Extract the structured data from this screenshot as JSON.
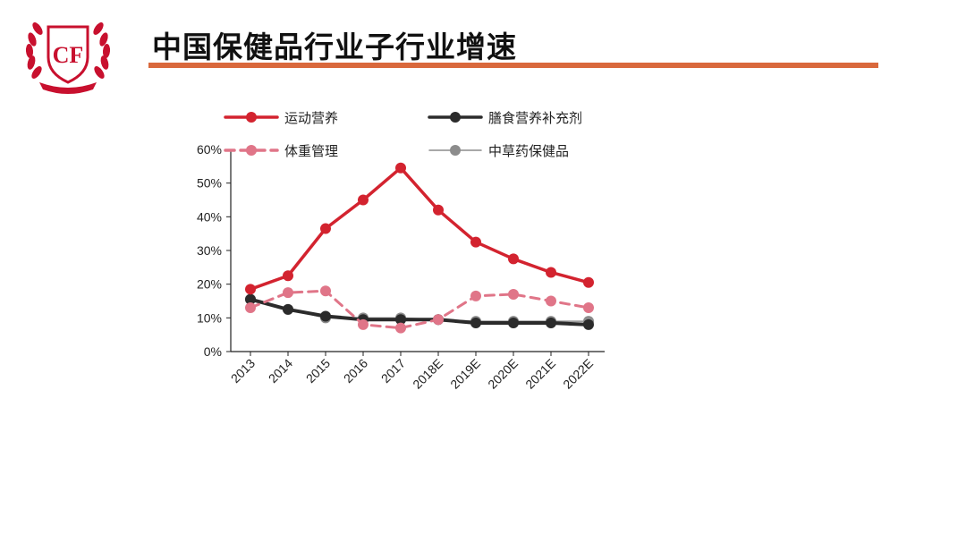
{
  "slide": {
    "title": "中国保健品行业子行业增速",
    "accent_color": "#d9683c"
  },
  "logo": {
    "text": "CF",
    "color": "#c8102e",
    "icon": "laurel-wreath-icon"
  },
  "chart_data": {
    "type": "line",
    "categories": [
      "2013",
      "2014",
      "2015",
      "2016",
      "2017",
      "2018E",
      "2019E",
      "2020E",
      "2021E",
      "2022E"
    ],
    "y_ticks": [
      "0%",
      "10%",
      "20%",
      "30%",
      "40%",
      "50%",
      "60%"
    ],
    "ylim": [
      0,
      60
    ],
    "y_unit": "%",
    "grid": false,
    "legend_position": "top",
    "series": [
      {
        "name": "运动营养",
        "color": "#d3232f",
        "style": "solid",
        "values": [
          18.5,
          22.5,
          36.5,
          45,
          54.5,
          42,
          32.5,
          27.5,
          23.5,
          20.5
        ]
      },
      {
        "name": "膳食营养补充剂",
        "color": "#2b2b2b",
        "style": "solid",
        "values": [
          15.5,
          12.5,
          10.5,
          9.5,
          9.5,
          9.5,
          8.5,
          8.5,
          8.5,
          8.0
        ]
      },
      {
        "name": "体重管理",
        "color": "#e07588",
        "style": "dashed",
        "values": [
          13,
          17.5,
          18,
          8,
          7,
          9.5,
          16.5,
          17,
          15,
          13
        ]
      },
      {
        "name": "中草药保健品",
        "color": "#8c8c8c",
        "style": "solid",
        "values": [
          15.5,
          12.5,
          10,
          10,
          10,
          9.5,
          9,
          9,
          9,
          9
        ]
      }
    ]
  }
}
